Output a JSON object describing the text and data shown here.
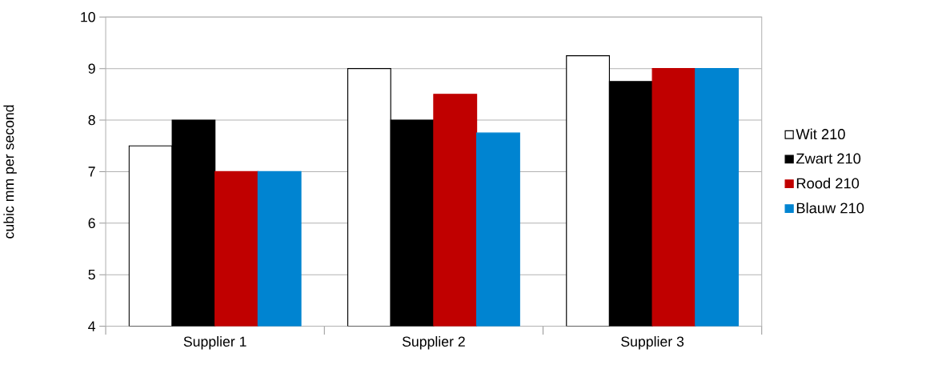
{
  "chart_data": {
    "type": "bar",
    "ylabel": "cubic mm per second",
    "categories": [
      "Supplier 1",
      "Supplier 2",
      "Supplier 3"
    ],
    "series": [
      {
        "name": "Wit 210",
        "color": "#ffffff",
        "values": [
          7.5,
          9,
          9.25
        ]
      },
      {
        "name": "Zwart 210",
        "color": "#000000",
        "values": [
          8,
          8,
          8.75
        ]
      },
      {
        "name": "Rood 210",
        "color": "#c00000",
        "values": [
          7,
          8.5,
          9
        ]
      },
      {
        "name": "Blauw 210",
        "color": "#0084d1",
        "values": [
          7,
          7.75,
          9
        ]
      }
    ],
    "ylim": [
      4,
      10
    ],
    "yticks": [
      4,
      5,
      6,
      7,
      8,
      9,
      10
    ],
    "grid": "y",
    "legend": "right"
  }
}
